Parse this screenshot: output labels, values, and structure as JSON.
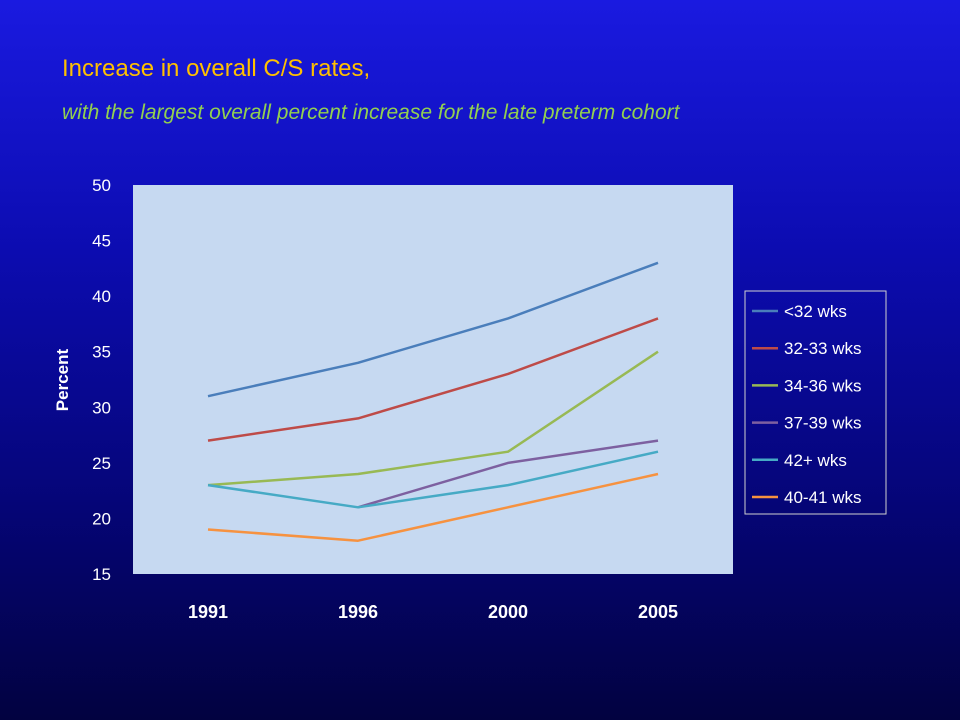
{
  "slide": {
    "title": "Increase in overall C/S rates,",
    "subtitle": "with the largest overall percent increase for the late preterm cohort"
  },
  "colors": {
    "title": "#ffc000",
    "subtitle": "#92d050",
    "plot_area": "#c6d9f1",
    "axis_text": "#ffffff"
  },
  "chart_data": {
    "type": "line",
    "title": "",
    "xlabel": "",
    "ylabel": "Percent",
    "ylim": [
      15,
      50
    ],
    "yticks": [
      15,
      20,
      25,
      30,
      35,
      40,
      45,
      50
    ],
    "grid": false,
    "legend_position": "right",
    "x": [
      "1991",
      "1996",
      "2000",
      "2005"
    ],
    "series": [
      {
        "name": "<32 wks",
        "color": "#4a7ebb",
        "values": [
          31,
          34,
          38,
          43
        ]
      },
      {
        "name": "32-33 wks",
        "color": "#be4b48",
        "values": [
          27,
          29,
          33,
          38
        ]
      },
      {
        "name": "34-36 wks",
        "color": "#98b954",
        "values": [
          23,
          24,
          26,
          35
        ]
      },
      {
        "name": "37-39 wks",
        "color": "#7d60a0",
        "values": [
          null,
          21,
          25,
          27
        ]
      },
      {
        "name": "42+ wks",
        "color": "#46aac5",
        "values": [
          23,
          21,
          23,
          26
        ]
      },
      {
        "name": "40-41 wks",
        "color": "#f69240",
        "values": [
          19,
          18,
          21,
          24
        ]
      }
    ]
  }
}
